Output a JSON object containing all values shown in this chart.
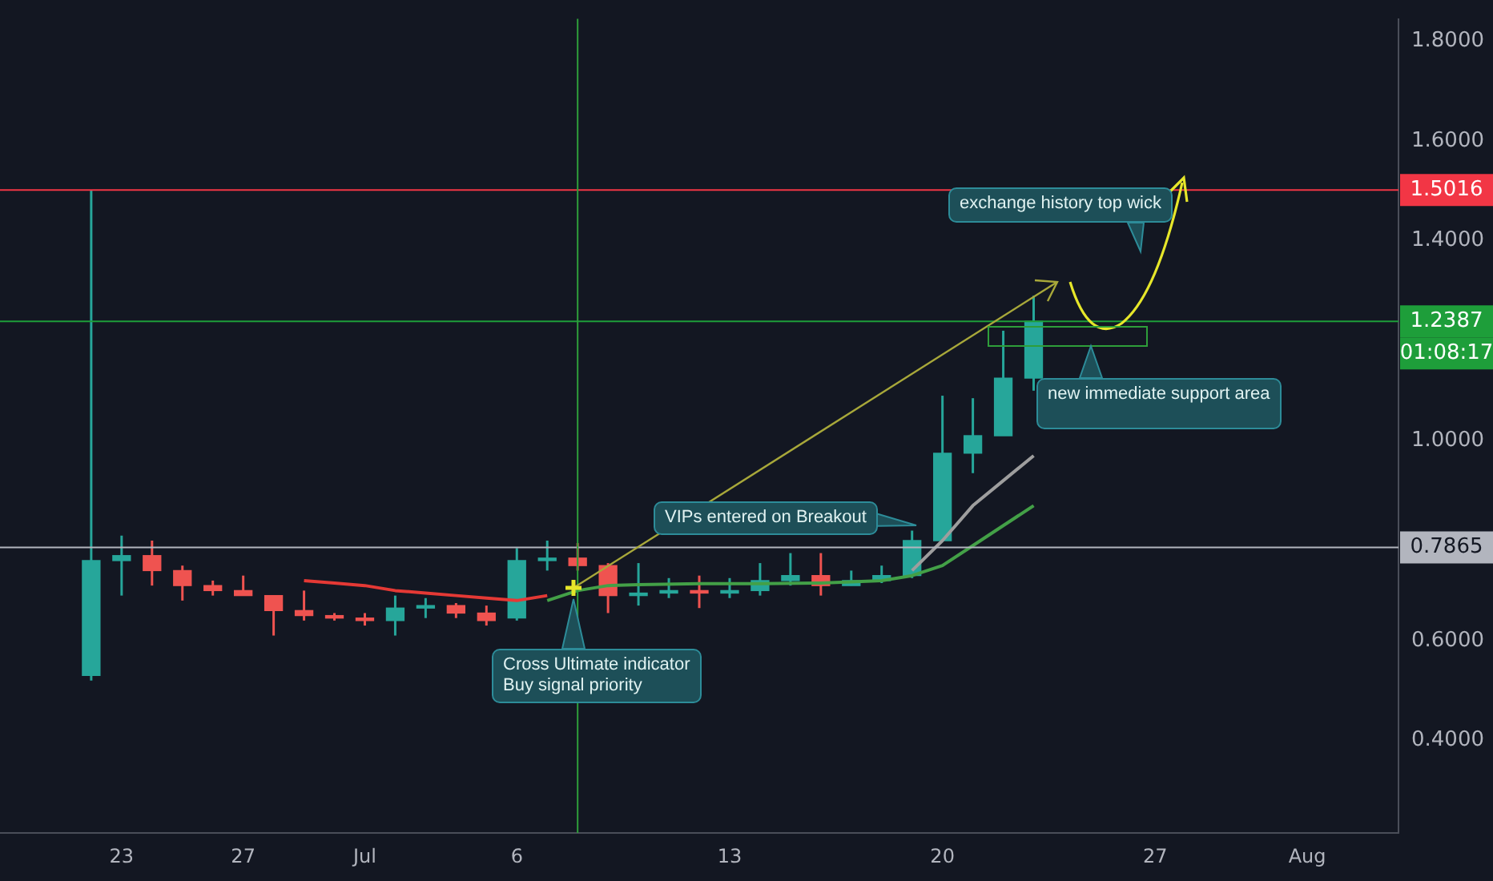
{
  "chart_data": {
    "type": "candlestick",
    "x": [
      "--06-22",
      "--06-23",
      "--06-24",
      "--06-25",
      "--06-26",
      "--06-27",
      "--06-28",
      "--06-29",
      "--06-30",
      "--07-01",
      "--07-02",
      "--07-03",
      "--07-04",
      "--07-05",
      "--07-06",
      "--07-07",
      "--07-08",
      "--07-09",
      "--07-10",
      "--07-11",
      "--07-12",
      "--07-13",
      "--07-14",
      "--07-15",
      "--07-16",
      "--07-17",
      "--07-18",
      "--07-19",
      "--07-20",
      "--07-21",
      "--07-22",
      "--07-23"
    ],
    "ohlc": [
      [
        0.53,
        1.5016,
        0.52,
        0.76
      ],
      [
        0.76,
        0.81,
        0.69,
        0.77
      ],
      [
        0.77,
        0.8,
        0.71,
        0.74
      ],
      [
        0.74,
        0.75,
        0.68,
        0.71
      ],
      [
        0.71,
        0.72,
        0.69,
        0.7
      ],
      [
        0.7,
        0.73,
        0.69,
        0.69
      ],
      [
        0.69,
        0.69,
        0.61,
        0.66
      ],
      [
        0.66,
        0.7,
        0.64,
        0.65
      ],
      [
        0.65,
        0.655,
        0.64,
        0.645
      ],
      [
        0.645,
        0.655,
        0.63,
        0.64
      ],
      [
        0.64,
        0.69,
        0.61,
        0.665
      ],
      [
        0.665,
        0.685,
        0.645,
        0.67
      ],
      [
        0.67,
        0.675,
        0.645,
        0.655
      ],
      [
        0.655,
        0.67,
        0.63,
        0.64
      ],
      [
        0.645,
        0.785,
        0.64,
        0.76
      ],
      [
        0.76,
        0.8,
        0.74,
        0.765
      ],
      [
        0.765,
        0.795,
        0.74,
        0.75
      ],
      [
        0.75,
        0.755,
        0.655,
        0.69
      ],
      [
        0.69,
        0.755,
        0.67,
        0.695
      ],
      [
        0.695,
        0.725,
        0.685,
        0.7
      ],
      [
        0.7,
        0.73,
        0.665,
        0.695
      ],
      [
        0.695,
        0.725,
        0.685,
        0.7
      ],
      [
        0.7,
        0.755,
        0.69,
        0.72
      ],
      [
        0.72,
        0.775,
        0.71,
        0.73
      ],
      [
        0.73,
        0.775,
        0.69,
        0.71
      ],
      [
        0.71,
        0.74,
        0.71,
        0.72
      ],
      [
        0.72,
        0.75,
        0.715,
        0.73
      ],
      [
        0.73,
        0.82,
        0.725,
        0.8
      ],
      [
        0.8,
        1.09,
        0.8,
        0.975
      ],
      [
        0.975,
        1.085,
        0.935,
        1.01
      ],
      [
        1.01,
        1.22,
        1.01,
        1.125
      ],
      [
        1.125,
        1.29,
        1.1,
        1.2387
      ]
    ],
    "colors": [
      "#26a69a",
      "#26a69a",
      "#ef5350",
      "#ef5350",
      "#ef5350",
      "#ef5350",
      "#ef5350",
      "#ef5350",
      "#ef5350",
      "#ef5350",
      "#26a69a",
      "#26a69a",
      "#ef5350",
      "#ef5350",
      "#26a69a",
      "#26a69a",
      "#ef5350",
      "#ef5350",
      "#26a69a",
      "#26a69a",
      "#ef5350",
      "#26a69a",
      "#26a69a",
      "#26a69a",
      "#ef5350",
      "#26a69a",
      "#26a69a",
      "#26a69a",
      "#26a69a",
      "#26a69a",
      "#26a69a",
      "#26a69a"
    ],
    "series": [
      {
        "type": "line",
        "color": "#e53935",
        "x": [
          "--06-29",
          "--06-30",
          "--07-01",
          "--07-02",
          "--07-03",
          "--07-04",
          "--07-05",
          "--07-06",
          "--07-07"
        ],
        "values": [
          0.72,
          0.715,
          0.71,
          0.7,
          0.695,
          0.69,
          0.685,
          0.68,
          0.69
        ]
      },
      {
        "type": "line",
        "color": "#43a047",
        "x": [
          "--07-07",
          "--07-08",
          "--07-09",
          "--07-10",
          "--07-12",
          "--07-14",
          "--07-16",
          "--07-18",
          "--07-19",
          "--07-20",
          "--07-21",
          "--07-22",
          "--07-23"
        ],
        "values": [
          0.68,
          0.7,
          0.71,
          0.712,
          0.714,
          0.714,
          0.715,
          0.72,
          0.73,
          0.75,
          0.79,
          0.83,
          0.87
        ]
      },
      {
        "type": "line",
        "color": "#9e9e9e",
        "x": [
          "--07-19",
          "--07-20",
          "--07-21",
          "--07-22",
          "--07-23"
        ],
        "values": [
          0.74,
          0.8,
          0.87,
          0.92,
          0.97
        ]
      }
    ],
    "xlim": [
      "--06-19",
      "--08-04"
    ],
    "xticks": [
      {
        "value": "--06-23",
        "label": "23"
      },
      {
        "value": "--06-27",
        "label": "27"
      },
      {
        "value": "--07-01",
        "label": "Jul"
      },
      {
        "value": "--07-06",
        "label": "6"
      },
      {
        "value": "--07-13",
        "label": "13"
      },
      {
        "value": "--07-20",
        "label": "20"
      },
      {
        "value": "--07-27",
        "label": "27"
      },
      {
        "value": "--08-01",
        "label": "Aug"
      }
    ],
    "ylim": [
      0.215,
      1.844
    ],
    "yticks": [
      {
        "value": 0.4,
        "label": "0.4000"
      },
      {
        "value": 0.6,
        "label": "0.6000"
      },
      {
        "value": 1.0,
        "label": "1.0000"
      },
      {
        "value": 1.4,
        "label": "1.4000"
      },
      {
        "value": 1.6,
        "label": "1.6000"
      },
      {
        "value": 1.8,
        "label": "1.8000"
      }
    ],
    "ref_lines": [
      {
        "axis": "y",
        "value": 1.5016,
        "label": "1.5016",
        "color": "#f23645"
      },
      {
        "axis": "y",
        "value": 1.2387,
        "label": "1.2387",
        "color": "#1e9e3a"
      },
      {
        "axis": "y",
        "value": 0.7865,
        "label": "0.7865",
        "color": "#b2b5be"
      },
      {
        "axis": "x",
        "value": "--07-08",
        "color": "#2e9e3a"
      }
    ],
    "annotations": [
      "exchange history top wick",
      "new immediate support area",
      "VIPs entered on Breakout",
      "Cross Ultimate indicator\nBuy signal priority",
      "01:08:17"
    ],
    "grid": false,
    "legend": false
  }
}
